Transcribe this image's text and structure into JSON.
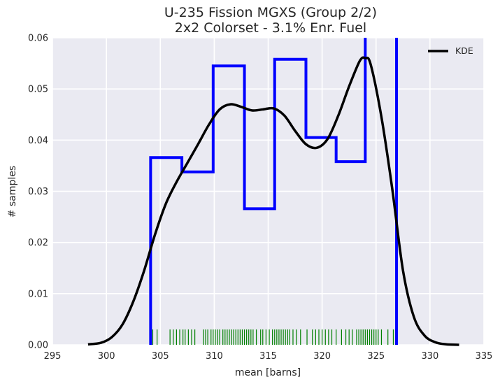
{
  "chart_data": {
    "type": "histogram",
    "title_line1": "U-235 Fission MGXS (Group 2/2)",
    "title_line2": "2x2 Colorset - 3.1% Enr. Fuel",
    "xlabel": "mean [barns]",
    "ylabel": "# samples",
    "xlim": [
      295,
      335
    ],
    "ylim": [
      0,
      0.06
    ],
    "xticks": [
      295,
      300,
      305,
      310,
      315,
      320,
      325,
      330,
      335
    ],
    "yticks": [
      "0.00",
      "0.01",
      "0.02",
      "0.03",
      "0.04",
      "0.05",
      "0.06"
    ],
    "grid": true,
    "legend": {
      "placement": "top-right",
      "entries": [
        "KDE"
      ]
    },
    "colors": {
      "background": "#eaeaf2",
      "grid": "#ffffff",
      "hist": "#0000ff",
      "kde": "#000000",
      "rug": "#008000"
    },
    "histogram": {
      "bin_edges": [
        304.1,
        307.0,
        309.9,
        312.8,
        315.6,
        318.5,
        321.3,
        324.0,
        326.9
      ],
      "densities": [
        0.0366,
        0.0338,
        0.0545,
        0.0266,
        0.0558,
        0.0405,
        0.0358,
        0.0655
      ]
    },
    "kde": {
      "name": "KDE",
      "x": [
        298.3,
        299.5,
        300.5,
        301.5,
        302.5,
        303.5,
        304.5,
        305.5,
        306.5,
        307.5,
        308.5,
        309.5,
        310.5,
        311.5,
        312.5,
        313.5,
        314.5,
        315.5,
        316.5,
        317.5,
        318.5,
        319.5,
        320.5,
        321.5,
        322.5,
        323.5,
        324.0,
        324.5,
        325.5,
        326.5,
        327.5,
        328.5,
        329.5,
        330.5,
        331.5,
        332.7
      ],
      "y": [
        0.0001,
        0.0004,
        0.0015,
        0.004,
        0.0085,
        0.0145,
        0.0215,
        0.0275,
        0.0318,
        0.0355,
        0.0392,
        0.043,
        0.046,
        0.047,
        0.0465,
        0.0458,
        0.046,
        0.0462,
        0.0448,
        0.0418,
        0.0392,
        0.0385,
        0.0402,
        0.0448,
        0.0505,
        0.0555,
        0.056,
        0.0548,
        0.0445,
        0.0305,
        0.0145,
        0.0055,
        0.0018,
        0.0005,
        0.0001,
        0.0
      ]
    },
    "rug": {
      "x": [
        304.3,
        304.7,
        305.9,
        306.2,
        306.5,
        306.8,
        307.1,
        307.3,
        307.6,
        307.9,
        308.2,
        309.0,
        309.2,
        309.4,
        309.7,
        309.9,
        310.1,
        310.3,
        310.5,
        310.8,
        311.0,
        311.2,
        311.4,
        311.6,
        311.8,
        312.0,
        312.2,
        312.4,
        312.6,
        312.8,
        313.0,
        313.2,
        313.4,
        313.6,
        313.9,
        314.3,
        314.5,
        314.8,
        315.1,
        315.4,
        315.6,
        315.8,
        316.0,
        316.2,
        316.4,
        316.6,
        316.8,
        317.0,
        317.3,
        317.6,
        318.0,
        318.6,
        319.1,
        319.4,
        319.7,
        320.0,
        320.3,
        320.6,
        320.9,
        321.3,
        321.8,
        322.2,
        322.5,
        322.8,
        323.2,
        323.4,
        323.6,
        323.8,
        324.0,
        324.2,
        324.4,
        324.6,
        324.8,
        325.0,
        325.2,
        325.5,
        326.1,
        326.6,
        326.8
      ]
    }
  }
}
